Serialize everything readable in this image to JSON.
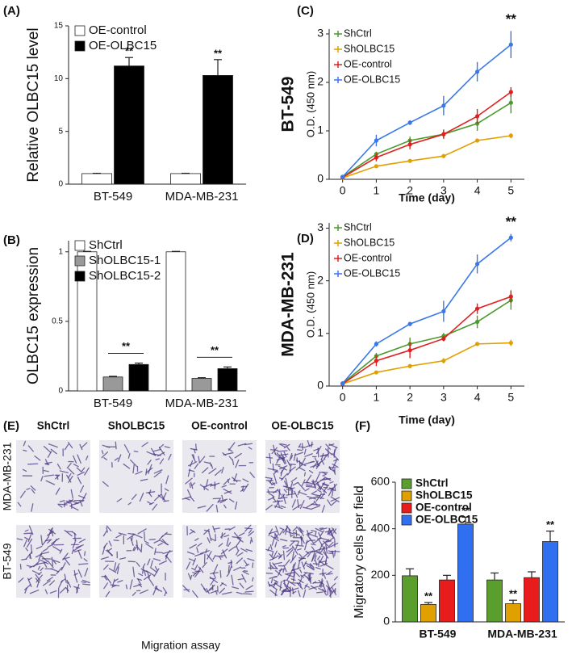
{
  "chart_data": [
    {
      "type": "bar",
      "panel_label": "(A)",
      "ylabel": "Relative OLBC15 level",
      "categories": [
        "BT-549",
        "MDA-MB-231"
      ],
      "series": [
        {
          "name": "OE-control",
          "color": "#ffffff",
          "values": [
            1,
            1
          ],
          "errors": [
            0.03,
            0.03
          ]
        },
        {
          "name": "OE-OLBC15",
          "color": "#000000",
          "values": [
            11.2,
            10.3
          ],
          "errors": [
            0.8,
            1.5
          ],
          "annotation": "**"
        }
      ],
      "ylim": [
        0,
        15
      ],
      "yticks": [
        0,
        5,
        10,
        15
      ],
      "legend": "upper left"
    },
    {
      "type": "bar",
      "panel_label": "(B)",
      "ylabel": "OLBC15 expression",
      "categories": [
        "BT-549",
        "MDA-MB-231"
      ],
      "series": [
        {
          "name": "ShCtrl",
          "color": "#ffffff",
          "values": [
            1,
            1
          ],
          "errors": [
            0.003,
            0.003
          ]
        },
        {
          "name": "ShOLBC15-1",
          "color": "#999999",
          "values": [
            0.1,
            0.09
          ],
          "errors": [
            0.005,
            0.005
          ]
        },
        {
          "name": "ShOLBC15-2",
          "color": "#000000",
          "values": [
            0.19,
            0.16
          ],
          "errors": [
            0.01,
            0.012
          ]
        }
      ],
      "bracket_label": "**",
      "ylim": [
        0,
        1.08
      ],
      "yticks": [
        0,
        0.5,
        1
      ],
      "legend": "upper left"
    },
    {
      "type": "line",
      "panel_label": "(C)",
      "side_label": "BT-549",
      "xlabel": "Time (day)",
      "ylabel": "O.D. (450 nm)",
      "x": [
        0,
        1,
        2,
        3,
        4,
        5
      ],
      "series": [
        {
          "name": "ShCtrl",
          "color": "#4a9a2c",
          "values": [
            0.05,
            0.52,
            0.8,
            0.93,
            1.15,
            1.58
          ],
          "errors": [
            0.02,
            0.05,
            0.08,
            0.1,
            0.15,
            0.22
          ]
        },
        {
          "name": "ShOLBC15",
          "color": "#e0a000",
          "values": [
            0.03,
            0.27,
            0.38,
            0.48,
            0.8,
            0.9
          ],
          "errors": [
            0.02,
            0.03,
            0.03,
            0.04,
            0.03,
            0.05
          ]
        },
        {
          "name": "OE-control",
          "color": "#e02020",
          "values": [
            0.04,
            0.45,
            0.72,
            0.93,
            1.3,
            1.8
          ],
          "errors": [
            0.02,
            0.08,
            0.1,
            0.08,
            0.15,
            0.1
          ]
        },
        {
          "name": "OE-OLBC15",
          "color": "#3a78e8",
          "values": [
            0.05,
            0.8,
            1.17,
            1.52,
            2.22,
            2.78
          ],
          "errors": [
            0.02,
            0.12,
            0.05,
            0.2,
            0.2,
            0.28
          ]
        }
      ],
      "annotation": "**",
      "xlim": [
        -0.4,
        5.4
      ],
      "xticks": [
        0,
        1,
        2,
        3,
        4,
        5
      ],
      "ylim": [
        0,
        3.1
      ],
      "yticks": [
        0,
        1,
        2,
        3
      ],
      "legend": "upper left"
    },
    {
      "type": "line",
      "panel_label": "(D)",
      "side_label": "MDA-MB-231",
      "xlabel": "Time (day)",
      "ylabel": "O.D. (450 nm)",
      "x": [
        0,
        1,
        2,
        3,
        4,
        5
      ],
      "series": [
        {
          "name": "ShCtrl",
          "color": "#4a9a2c",
          "values": [
            0.05,
            0.57,
            0.8,
            0.95,
            1.22,
            1.63
          ],
          "errors": [
            0.02,
            0.06,
            0.12,
            0.06,
            0.12,
            0.18
          ]
        },
        {
          "name": "ShOLBC15",
          "color": "#e0a000",
          "values": [
            0.04,
            0.26,
            0.38,
            0.48,
            0.8,
            0.82
          ],
          "errors": [
            0.02,
            0.03,
            0.03,
            0.05,
            0.03,
            0.06
          ]
        },
        {
          "name": "OE-control",
          "color": "#e02020",
          "values": [
            0.04,
            0.48,
            0.68,
            0.9,
            1.47,
            1.7
          ],
          "errors": [
            0.02,
            0.1,
            0.15,
            0.05,
            0.1,
            0.12
          ]
        },
        {
          "name": "OE-OLBC15",
          "color": "#3a78e8",
          "values": [
            0.05,
            0.8,
            1.18,
            1.42,
            2.32,
            2.82
          ],
          "errors": [
            0.02,
            0.05,
            0.04,
            0.2,
            0.18,
            0.07
          ]
        }
      ],
      "annotation": "**",
      "xlim": [
        -0.4,
        5.4
      ],
      "xticks": [
        0,
        1,
        2,
        3,
        4,
        5
      ],
      "ylim": [
        0,
        3.1
      ],
      "yticks": [
        0,
        1,
        2,
        3
      ],
      "legend": "upper left"
    },
    {
      "type": "bar",
      "panel_label": "(F)",
      "ylabel": "Migratory cells per field",
      "categories": [
        "BT-549",
        "MDA-MB-231"
      ],
      "series": [
        {
          "name": "ShCtrl",
          "color": "#5a9e2e",
          "values": [
            198,
            180
          ],
          "errors": [
            30,
            30
          ]
        },
        {
          "name": "ShOLBC15",
          "color": "#e0a000",
          "values": [
            75,
            78
          ],
          "errors": [
            8,
            15
          ],
          "annotation": "**"
        },
        {
          "name": "OE-control",
          "color": "#e81c1c",
          "values": [
            180,
            190
          ],
          "errors": [
            20,
            25
          ]
        },
        {
          "name": "OE-OLBC15",
          "color": "#2f6ff0",
          "values": [
            420,
            345
          ],
          "errors": [
            30,
            45
          ],
          "annotation": "**"
        }
      ],
      "ylim": [
        0,
        600
      ],
      "yticks": [
        0,
        200,
        400,
        600
      ],
      "legend": "upper left"
    }
  ],
  "image_panel": {
    "panel_label": "(E)",
    "columns": [
      "ShCtrl",
      "ShOLBC15",
      "OE-control",
      "OE-OLBC15"
    ],
    "rows": [
      "MDA-MB-231",
      "BT-549"
    ],
    "caption": "Migration assay"
  }
}
